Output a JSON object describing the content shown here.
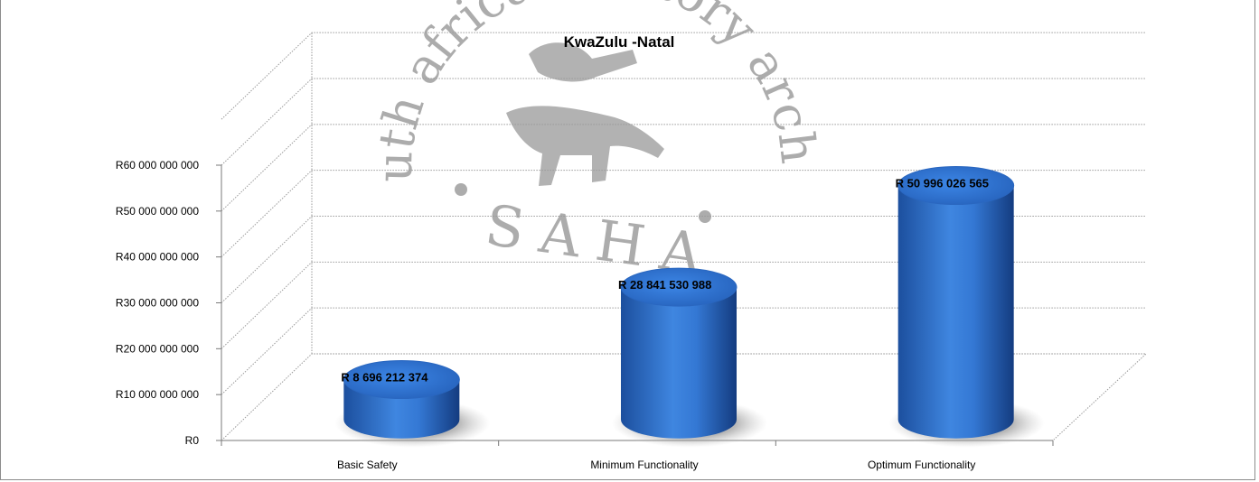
{
  "chart_data": {
    "type": "bar",
    "title": "KwaZulu    -Natal",
    "categories": [
      "Basic  Safety",
      "Minimum  Functionality",
      "Optimum  Functionality"
    ],
    "values": [
      8696212374,
      28841530988,
      50996026565
    ],
    "data_labels": [
      "R 8 696  212  374",
      "R 28  841  530  988",
      "R 50  996  026  565"
    ],
    "y_ticks": [
      {
        "value": 0,
        "label": "R0"
      },
      {
        "value": 10000000000,
        "label": "R10 000 000 000"
      },
      {
        "value": 20000000000,
        "label": "R20 000 000 000"
      },
      {
        "value": 30000000000,
        "label": "R30 000 000 000"
      },
      {
        "value": 40000000000,
        "label": "R40 000 000 000"
      },
      {
        "value": 50000000000,
        "label": "R50 000 000 000"
      },
      {
        "value": 60000000000,
        "label": "R60 000 000 000"
      }
    ],
    "ylim": [
      0,
      60000000000
    ],
    "xlabel": "",
    "ylabel": "",
    "grid": true,
    "bar_style": "3d-cylinder",
    "bar_color": "#2e6fc6",
    "legend": "none"
  },
  "watermark": {
    "arc_text": "south  african  history  archive",
    "main_text": "SAHA"
  }
}
